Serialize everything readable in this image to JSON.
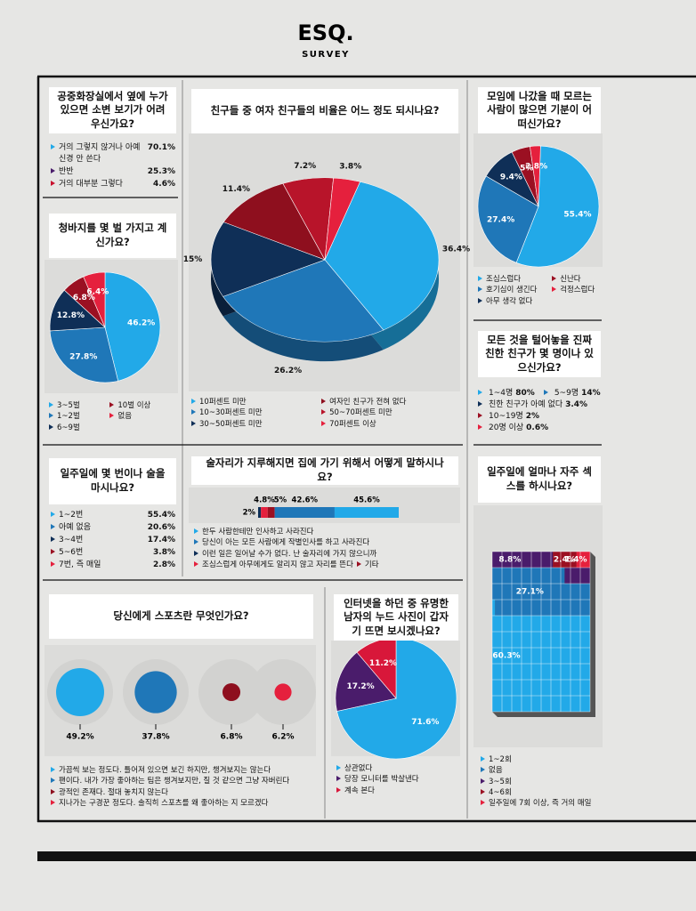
{
  "header": {
    "title": "ESQ.",
    "subtitle": "SURVEY"
  },
  "chart_data": [
    {
      "type": "list",
      "title": "공중화장실에서 옆에 누가 있으면 소변 보기가 어려우신가요?",
      "categories": [
        "거의 그렇지 않거나 아예 신경 안 쓴다",
        "반반",
        "거의 대부분 그렇다"
      ],
      "values": [
        70.1,
        25.3,
        4.6
      ],
      "value_labels": [
        "70.1%",
        "25.3%",
        "4.6%"
      ],
      "colors": [
        "#22a9e8",
        "#4a1c6b",
        "#c8102e"
      ]
    },
    {
      "type": "pie",
      "title": "청바지를 몇 벌 가지고 계신가요?",
      "categories": [
        "3~5벌",
        "1~2벌",
        "6~9벌",
        "10벌 이상",
        "없음"
      ],
      "values": [
        46.2,
        27.8,
        12.8,
        6.8,
        6.4
      ],
      "value_labels": [
        "46.2%",
        "27.8%",
        "12.8%",
        "6.8%",
        "6.4%"
      ],
      "colors": [
        "#22a9e8",
        "#1f77b8",
        "#0f2f57",
        "#9b1022",
        "#e5203d"
      ]
    },
    {
      "type": "pie",
      "title": "친구들 중 여자 친구들의 비율은 어느 정도 되시나요?",
      "categories": [
        "10퍼센트 미만",
        "10~30퍼센트 미만",
        "30~50퍼센트 미만",
        "여자인 친구가 전혀 없다",
        "50~70퍼센트 미만",
        "70퍼센트 이상"
      ],
      "values": [
        36.4,
        26.2,
        15,
        11.4,
        7.2,
        3.8
      ],
      "value_labels": [
        "36.4%",
        "26.2%",
        "15%",
        "11.4%",
        "7.2%",
        "3.8%"
      ],
      "colors": [
        "#22a9e8",
        "#1f77b8",
        "#0f2f57",
        "#8e0f1e",
        "#b8142a",
        "#e5203d"
      ]
    },
    {
      "type": "pie",
      "title": "모임에 나갔을 때 모르는 사람이 많으면 기분이 어떠신가요?",
      "categories": [
        "조심스럽다",
        "호기심이 생긴다",
        "아무 생각 없다",
        "신난다",
        "걱정스럽다"
      ],
      "values": [
        55.4,
        27.4,
        9.4,
        5,
        2.8
      ],
      "value_labels": [
        "55.4%",
        "27.4%",
        "9.4%",
        "5%",
        "2.8%"
      ],
      "colors": [
        "#22a9e8",
        "#1f77b8",
        "#0f2f57",
        "#9b1022",
        "#e5203d"
      ]
    },
    {
      "type": "list",
      "title": "모든 것을 털어놓을 진짜 친한 친구가 몇 명이나 있으신가요?",
      "categories": [
        "1~4명",
        "5~9명",
        "친한 친구가 아예 없다",
        "10~19명",
        "20명 이상"
      ],
      "values": [
        80,
        14,
        3.4,
        2,
        0.6
      ],
      "value_labels": [
        "80%",
        "14%",
        "3.4%",
        "2%",
        "0.6%"
      ],
      "colors": [
        "#22a9e8",
        "#1f77b8",
        "#0f2f57",
        "#9b1022",
        "#e5203d"
      ]
    },
    {
      "type": "list",
      "title": "일주일에 몇 번이나 술을 마시나요?",
      "categories": [
        "1~2번",
        "아예 없음",
        "3~4번",
        "5~6번",
        "7번, 즉 매일"
      ],
      "values": [
        55.4,
        20.6,
        17.4,
        3.8,
        2.8
      ],
      "value_labels": [
        "55.4%",
        "20.6%",
        "17.4%",
        "3.8%",
        "2.8%"
      ],
      "colors": [
        "#22a9e8",
        "#1f77b8",
        "#0f2f57",
        "#9b1022",
        "#e5203d"
      ]
    },
    {
      "type": "stacked_bar",
      "title": "술자리가 지루해지면 집에 가기 위해서 어떻게 말하시나요?",
      "series": [
        {
          "name": "이런 일은 일어날 수가 없다. 난 술자리에 가지 않으니까",
          "color": "#0f2f57",
          "values": [
            2
          ],
          "value_labels": [
            "2%"
          ]
        },
        {
          "name": "조심스럽게 아무에게도 알리지 않고 자리를 뜬다",
          "color": "#e5203d",
          "values": [
            4.8
          ],
          "value_labels": [
            "4.8%"
          ]
        },
        {
          "name": "기타",
          "color": "#9b1022",
          "values": [
            5
          ],
          "value_labels": [
            "5%"
          ]
        },
        {
          "name": "당신이 아는 모든 사람에게 작별인사를 하고 사라진다",
          "color": "#1f77b8",
          "values": [
            42.6
          ],
          "value_labels": [
            "42.6%"
          ]
        },
        {
          "name": "한두 사람한테만 인사하고 사라진다",
          "color": "#22a9e8",
          "values": [
            45.6
          ],
          "value_labels": [
            "45.6%"
          ]
        }
      ]
    },
    {
      "type": "bubble",
      "title": "당신에게 스포츠란 무엇인가요?",
      "categories": [
        "가끔씩 보는 정도다. 틀어져 있으면 보긴 하지만, 챙겨보지는 않는다",
        "팬이다. 내가 가장 좋아하는 팀은 챙겨보지만, 질 것 같으면 그냥 자버린다",
        "광적인 존재다. 절대 놓치지 않는다",
        "지나가는 구경꾼 정도다. 솔직히 스포츠를 왜 좋아하는 지 모르겠다"
      ],
      "values": [
        49.2,
        37.8,
        6.8,
        6.2
      ],
      "value_labels": [
        "49.2%",
        "37.8%",
        "6.8%",
        "6.2%"
      ],
      "colors": [
        "#22a9e8",
        "#1f77b8",
        "#8e0f1e",
        "#e5203d"
      ]
    },
    {
      "type": "pie",
      "title": "인터넷을 하던 중 유명한 남자의 누드 사진이 갑자기 뜨면 보시겠나요?",
      "categories": [
        "상관없다",
        "당장 모니터를 박살낸다",
        "계속 본다"
      ],
      "values": [
        71.6,
        17.2,
        11.2
      ],
      "value_labels": [
        "71.6%",
        "17.2%",
        "11.2%"
      ],
      "colors": [
        "#22a9e8",
        "#4a1c6b",
        "#d8173a"
      ]
    },
    {
      "type": "waffle",
      "title": "일주일에 얼마나 자주 섹스를 하시나요?",
      "categories": [
        "1~2회",
        "없음",
        "3~5회",
        "4~6회",
        "일주일에 7회 이상, 즉 거의 매일"
      ],
      "values": [
        60.3,
        27.1,
        8.8,
        2.4,
        1.4
      ],
      "value_labels": [
        "60.3%",
        "27.1%",
        "8.8%",
        "2.4%",
        "1.4%"
      ],
      "colors": [
        "#22a9e8",
        "#1f77b8",
        "#4a1c6b",
        "#9b1022",
        "#e5203d"
      ]
    }
  ]
}
